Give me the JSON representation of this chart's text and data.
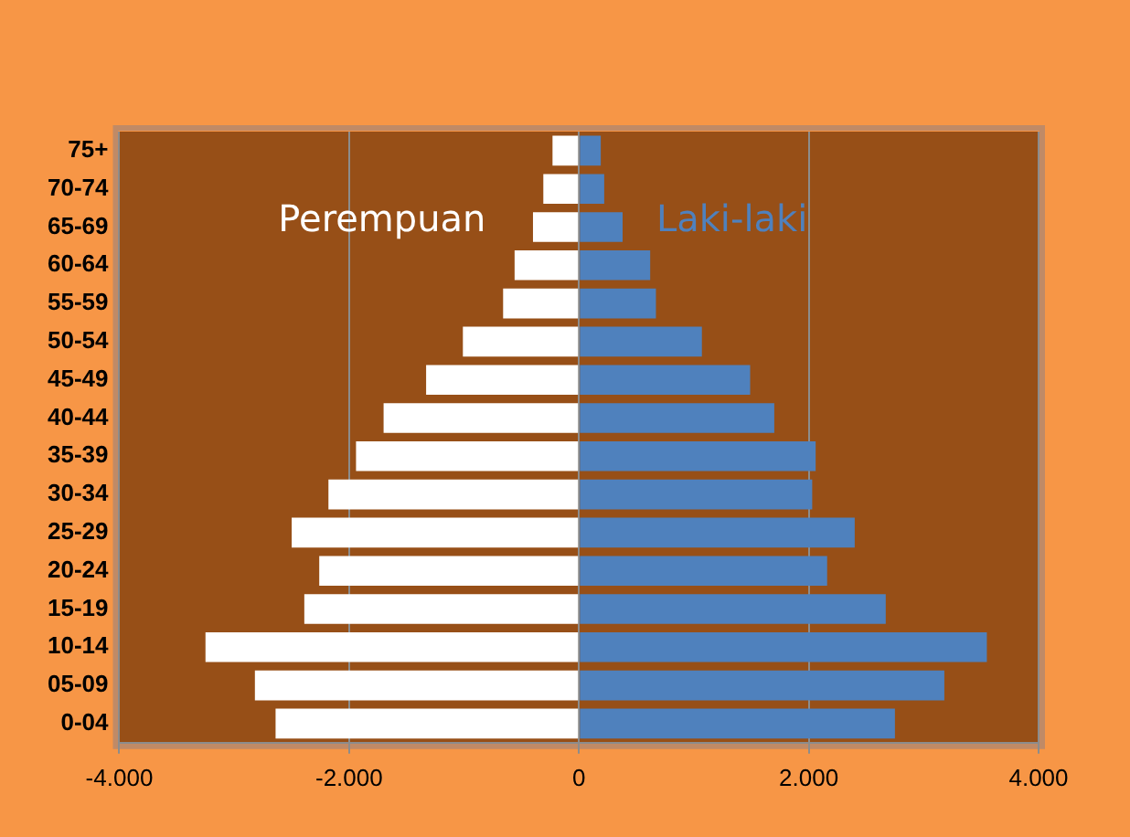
{
  "chart_data": {
    "type": "bar",
    "orientation": "horizontal",
    "stacked": true,
    "categories": [
      "75+",
      "70-74",
      "65-69",
      "60-64",
      "55-59",
      "50-54",
      "45-49",
      "40-44",
      "35-39",
      "30-34",
      "25-29",
      "20-24",
      "15-19",
      "10-14",
      "05-09",
      "0-04"
    ],
    "series": [
      {
        "name": "Perempuan",
        "color": "#ffffff",
        "values": [
          -230,
          -310,
          -400,
          -560,
          -660,
          -1010,
          -1330,
          -1700,
          -1940,
          -2180,
          -2500,
          -2260,
          -2390,
          -3250,
          -2820,
          -2640
        ]
      },
      {
        "name": "Laki-laki",
        "color": "#4f81bd",
        "values": [
          190,
          220,
          380,
          620,
          670,
          1070,
          1490,
          1700,
          2060,
          2030,
          2400,
          2160,
          2670,
          3550,
          3180,
          2750
        ]
      }
    ],
    "xlim": [
      -4000,
      4000
    ],
    "xticks": [
      {
        "value": -4000,
        "label": "-4.000"
      },
      {
        "value": -2000,
        "label": "-2.000"
      },
      0,
      {
        "value": 2000,
        "label": "2.000"
      },
      {
        "value": 4000,
        "label": "4.000"
      }
    ],
    "grid": "x",
    "legend": false
  }
}
